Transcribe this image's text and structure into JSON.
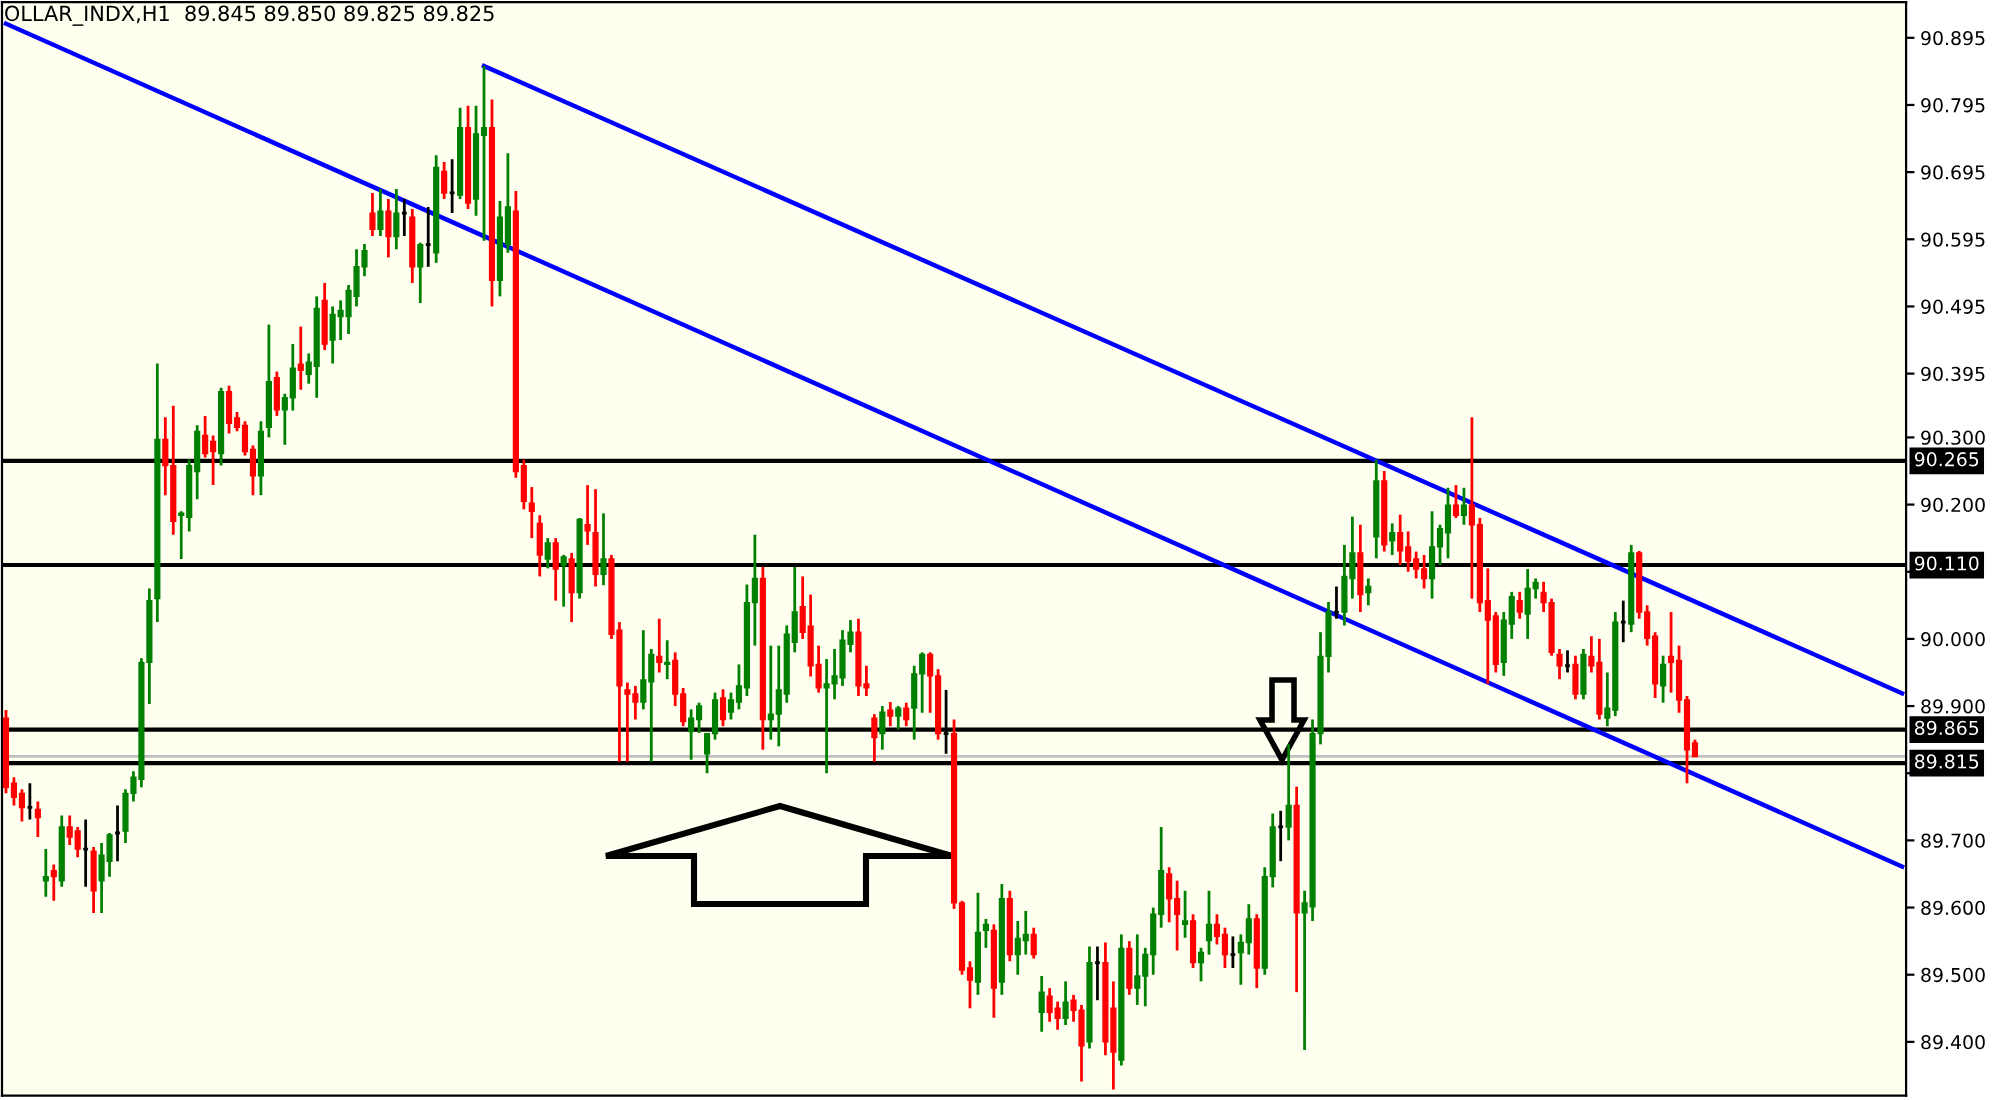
{
  "chart_data": {
    "type": "candlestick",
    "title": "OLLAR_INDX,H1  89.845 89.850 89.825 89.825",
    "categories": [
      null,
      null,
      null,
      null,
      null,
      null,
      null,
      null,
      null,
      null,
      null,
      null,
      null,
      null,
      null,
      null,
      null,
      null,
      null,
      null,
      null,
      null,
      null,
      null,
      null,
      null,
      null,
      null,
      null,
      null,
      null,
      null,
      null,
      null,
      null,
      null,
      null,
      null,
      null,
      null,
      null,
      null,
      null,
      null,
      null,
      null,
      null,
      null,
      null,
      null,
      null,
      null,
      null,
      null,
      null,
      null,
      null,
      null,
      null,
      null,
      null,
      null,
      null,
      null,
      null,
      null,
      null,
      null,
      null,
      null,
      null,
      null,
      null,
      null,
      null,
      null,
      null,
      null,
      null,
      null,
      null,
      null,
      null,
      null,
      null,
      null,
      null,
      null,
      null,
      null,
      null,
      null,
      null,
      null,
      null,
      null,
      null,
      null,
      null,
      null,
      null,
      null,
      null,
      null,
      null,
      null,
      null,
      null,
      null,
      null,
      null,
      null,
      null,
      null,
      null,
      null,
      null,
      null,
      null,
      null,
      null,
      null,
      null,
      null,
      null,
      null,
      null,
      null,
      null,
      null,
      null,
      null,
      null,
      null,
      null,
      null,
      null,
      null,
      null,
      null,
      null,
      null,
      null,
      null,
      null,
      null,
      null,
      null,
      null,
      null,
      null,
      null,
      null,
      null,
      null,
      null,
      null,
      null,
      null,
      null,
      null,
      null,
      null,
      null,
      null,
      null,
      null,
      null,
      null,
      null,
      null,
      null,
      null,
      null,
      null,
      null,
      null,
      null,
      null,
      null,
      null,
      null,
      null,
      null,
      null,
      null,
      null,
      null,
      null,
      null,
      null,
      null,
      null,
      null,
      null,
      null,
      null,
      null,
      null,
      null,
      null,
      null,
      null,
      null,
      null,
      null,
      null,
      null,
      null,
      null,
      null,
      null,
      null,
      null,
      null,
      null,
      null,
      null,
      null,
      null,
      null,
      null,
      null,
      null,
      null,
      null,
      null,
      null,
      null,
      null,
      null,
      null,
      null,
      null,
      null,
      null,
      null,
      null,
      null
    ],
    "ohlc": [
      [
        89.882,
        89.894,
        89.77,
        89.779
      ],
      [
        89.785,
        89.794,
        89.752,
        89.764
      ],
      [
        89.77,
        89.776,
        89.728,
        89.749
      ],
      [
        89.749,
        89.785,
        89.731,
        89.749
      ],
      [
        89.746,
        89.758,
        89.705,
        89.734
      ],
      [
        89.64,
        89.687,
        89.616,
        89.646
      ],
      [
        89.655,
        89.664,
        89.61,
        89.646
      ],
      [
        89.64,
        89.737,
        89.631,
        89.72
      ],
      [
        89.72,
        89.737,
        89.693,
        89.705
      ],
      [
        89.714,
        89.72,
        89.675,
        89.687
      ],
      [
        89.687,
        89.731,
        89.631,
        89.687
      ],
      [
        89.684,
        89.69,
        89.592,
        89.625
      ],
      [
        89.64,
        89.696,
        89.592,
        89.678
      ],
      [
        89.669,
        89.711,
        89.646,
        89.708
      ],
      [
        89.711,
        89.752,
        89.669,
        89.711
      ],
      [
        89.714,
        89.776,
        89.696,
        89.77
      ],
      [
        89.77,
        89.803,
        89.758,
        89.794
      ],
      [
        89.791,
        89.971,
        89.779,
        89.965
      ],
      [
        89.965,
        90.075,
        89.903,
        90.057
      ],
      [
        90.06,
        90.41,
        90.025,
        90.297
      ],
      [
        90.297,
        90.33,
        90.214,
        90.258
      ],
      [
        90.258,
        90.347,
        90.155,
        90.175
      ],
      [
        90.184,
        90.19,
        90.119,
        90.187
      ],
      [
        90.181,
        90.267,
        90.16,
        90.258
      ],
      [
        90.249,
        90.318,
        90.208,
        90.309
      ],
      [
        90.303,
        90.332,
        90.27,
        90.276
      ],
      [
        90.294,
        90.303,
        90.229,
        90.279
      ],
      [
        90.276,
        90.374,
        90.258,
        90.368
      ],
      [
        90.368,
        90.377,
        90.306,
        90.321
      ],
      [
        90.329,
        90.338,
        90.309,
        90.315
      ],
      [
        90.318,
        90.324,
        90.273,
        90.279
      ],
      [
        90.282,
        90.288,
        90.214,
        90.243
      ],
      [
        90.243,
        90.324,
        90.214,
        90.309
      ],
      [
        90.315,
        90.468,
        90.3,
        90.383
      ],
      [
        90.389,
        90.398,
        90.332,
        90.341
      ],
      [
        90.341,
        90.365,
        90.289,
        90.359
      ],
      [
        90.359,
        90.439,
        90.34,
        90.403
      ],
      [
        90.409,
        90.465,
        90.371,
        90.4
      ],
      [
        90.394,
        90.425,
        90.38,
        90.412
      ],
      [
        90.406,
        90.51,
        90.359,
        90.492
      ],
      [
        90.504,
        90.53,
        90.43,
        90.439
      ],
      [
        90.445,
        90.495,
        90.41,
        90.483
      ],
      [
        90.48,
        90.504,
        90.445,
        90.489
      ],
      [
        90.48,
        90.527,
        90.454,
        90.519
      ],
      [
        90.51,
        90.58,
        90.495,
        90.554
      ],
      [
        90.554,
        90.588,
        90.54,
        90.578
      ],
      [
        90.634,
        90.664,
        90.6,
        90.61
      ],
      [
        90.61,
        90.67,
        90.6,
        90.637
      ],
      [
        90.637,
        90.655,
        90.568,
        90.599
      ],
      [
        90.599,
        90.67,
        90.58,
        90.634
      ],
      [
        90.634,
        90.655,
        90.6,
        90.634
      ],
      [
        90.628,
        90.64,
        90.53,
        90.554
      ],
      [
        90.554,
        90.59,
        90.5,
        90.587
      ],
      [
        90.587,
        90.643,
        90.554,
        90.587
      ],
      [
        90.575,
        90.72,
        90.56,
        90.702
      ],
      [
        90.696,
        90.71,
        90.655,
        90.664
      ],
      [
        90.664,
        90.714,
        90.634,
        90.664
      ],
      [
        90.661,
        90.791,
        90.655,
        90.761
      ],
      [
        90.761,
        90.794,
        90.64,
        90.649
      ],
      [
        90.655,
        90.794,
        90.63,
        90.752
      ],
      [
        90.75,
        90.853,
        90.593,
        90.761
      ],
      [
        90.761,
        90.803,
        90.495,
        90.534
      ],
      [
        90.534,
        90.652,
        90.51,
        90.628
      ],
      [
        90.587,
        90.723,
        90.575,
        90.643
      ],
      [
        90.637,
        90.667,
        90.24,
        90.249
      ],
      [
        90.258,
        90.267,
        90.193,
        90.205
      ],
      [
        90.202,
        90.226,
        90.15,
        90.19
      ],
      [
        90.172,
        90.184,
        90.093,
        90.125
      ],
      [
        90.119,
        90.15,
        90.105,
        90.143
      ],
      [
        90.143,
        90.15,
        90.057,
        90.104
      ],
      [
        90.11,
        90.125,
        90.048,
        90.122
      ],
      [
        90.119,
        90.128,
        90.025,
        90.069
      ],
      [
        90.069,
        90.18,
        90.06,
        90.178
      ],
      [
        90.17,
        90.229,
        90.14,
        90.161
      ],
      [
        90.158,
        90.223,
        90.078,
        90.096
      ],
      [
        90.096,
        90.187,
        90.08,
        90.119
      ],
      [
        90.119,
        90.125,
        90.0,
        90.007
      ],
      [
        90.013,
        90.025,
        89.817,
        89.93
      ],
      [
        89.924,
        89.935,
        89.817,
        89.918
      ],
      [
        89.918,
        89.93,
        89.88,
        89.906
      ],
      [
        89.906,
        90.013,
        89.895,
        89.939
      ],
      [
        89.936,
        89.985,
        89.817,
        89.977
      ],
      [
        89.974,
        90.03,
        89.95,
        89.965
      ],
      [
        89.962,
        89.998,
        89.94,
        89.965
      ],
      [
        89.968,
        89.98,
        89.9,
        89.918
      ],
      [
        89.918,
        89.927,
        89.87,
        89.877
      ],
      [
        89.862,
        89.895,
        89.82,
        89.882
      ],
      [
        89.88,
        89.905,
        89.86,
        89.9
      ],
      [
        89.829,
        89.86,
        89.8,
        89.859
      ],
      [
        89.859,
        89.92,
        89.85,
        89.909
      ],
      [
        89.912,
        89.925,
        89.87,
        89.88
      ],
      [
        89.891,
        89.92,
        89.88,
        89.909
      ],
      [
        89.906,
        89.962,
        89.895,
        89.93
      ],
      [
        89.927,
        90.081,
        89.915,
        90.054
      ],
      [
        90.054,
        90.155,
        89.99,
        90.09
      ],
      [
        90.09,
        90.107,
        89.835,
        89.88
      ],
      [
        89.88,
        89.99,
        89.85,
        89.888
      ],
      [
        89.888,
        89.99,
        89.84,
        89.924
      ],
      [
        89.918,
        90.02,
        89.905,
        90.007
      ],
      [
        89.995,
        90.107,
        89.98,
        90.04
      ],
      [
        90.048,
        90.093,
        90.0,
        90.01
      ],
      [
        90.019,
        90.066,
        89.944,
        89.96
      ],
      [
        89.962,
        89.99,
        89.92,
        89.927
      ],
      [
        89.927,
        89.97,
        89.8,
        89.933
      ],
      [
        89.933,
        89.985,
        89.91,
        89.945
      ],
      [
        89.942,
        90.013,
        89.93,
        89.998
      ],
      [
        89.992,
        90.028,
        89.98,
        90.01
      ],
      [
        90.01,
        90.03,
        89.915,
        89.93
      ],
      [
        89.933,
        89.96,
        89.915,
        89.927
      ],
      [
        89.882,
        89.888,
        89.817,
        89.853
      ],
      [
        89.859,
        89.9,
        89.835,
        89.891
      ],
      [
        89.894,
        89.906,
        89.87,
        89.885
      ],
      [
        89.885,
        89.9,
        89.865,
        89.897
      ],
      [
        89.897,
        89.905,
        89.87,
        89.88
      ],
      [
        89.897,
        89.96,
        89.85,
        89.948
      ],
      [
        89.948,
        89.98,
        89.89,
        89.977
      ],
      [
        89.977,
        89.98,
        89.89,
        89.945
      ],
      [
        89.945,
        89.955,
        89.85,
        89.859
      ],
      [
        89.859,
        89.924,
        89.829,
        89.859
      ],
      [
        89.859,
        89.88,
        89.598,
        89.607
      ],
      [
        89.607,
        89.61,
        89.5,
        89.507
      ],
      [
        89.51,
        89.52,
        89.45,
        89.492
      ],
      [
        89.489,
        89.622,
        89.47,
        89.563
      ],
      [
        89.566,
        89.583,
        89.54,
        89.575
      ],
      [
        89.566,
        89.575,
        89.436,
        89.48
      ],
      [
        89.489,
        89.635,
        89.47,
        89.613
      ],
      [
        89.613,
        89.625,
        89.52,
        89.53
      ],
      [
        89.53,
        89.58,
        89.5,
        89.554
      ],
      [
        89.551,
        89.595,
        89.53,
        89.56
      ],
      [
        89.56,
        89.57,
        89.524,
        89.53
      ],
      [
        89.444,
        89.498,
        89.415,
        89.474
      ],
      [
        89.468,
        89.48,
        89.43,
        89.444
      ],
      [
        89.45,
        89.46,
        89.418,
        89.435
      ],
      [
        89.435,
        89.49,
        89.425,
        89.459
      ],
      [
        89.462,
        89.47,
        89.43,
        89.447
      ],
      [
        89.447,
        89.455,
        89.341,
        89.394
      ],
      [
        89.4,
        89.542,
        89.39,
        89.518
      ],
      [
        89.518,
        89.542,
        89.462,
        89.518
      ],
      [
        89.518,
        89.548,
        89.38,
        89.4
      ],
      [
        89.45,
        89.49,
        89.329,
        89.385
      ],
      [
        89.373,
        89.56,
        89.365,
        89.539
      ],
      [
        89.539,
        89.55,
        89.47,
        89.48
      ],
      [
        89.48,
        89.56,
        89.455,
        89.498
      ],
      [
        89.498,
        89.54,
        89.453,
        89.53
      ],
      [
        89.53,
        89.6,
        89.5,
        89.59
      ],
      [
        89.59,
        89.72,
        89.57,
        89.655
      ],
      [
        89.65,
        89.66,
        89.578,
        89.613
      ],
      [
        89.613,
        89.64,
        89.536,
        89.59
      ],
      [
        89.575,
        89.625,
        89.555,
        89.58
      ],
      [
        89.58,
        89.59,
        89.51,
        89.518
      ],
      [
        89.518,
        89.54,
        89.49,
        89.533
      ],
      [
        89.551,
        89.625,
        89.53,
        89.575
      ],
      [
        89.575,
        89.59,
        89.545,
        89.557
      ],
      [
        89.56,
        89.57,
        89.51,
        89.53
      ],
      [
        89.53,
        89.557,
        89.51,
        89.53
      ],
      [
        89.533,
        89.56,
        89.485,
        89.548
      ],
      [
        89.548,
        89.605,
        89.53,
        89.583
      ],
      [
        89.583,
        89.59,
        89.48,
        89.51
      ],
      [
        89.51,
        89.66,
        89.5,
        89.646
      ],
      [
        89.646,
        89.74,
        89.63,
        89.72
      ],
      [
        89.72,
        89.744,
        89.669,
        89.72
      ],
      [
        89.72,
        89.843,
        89.7,
        89.752
      ],
      [
        89.752,
        89.78,
        89.474,
        89.592
      ],
      [
        89.592,
        89.625,
        89.388,
        89.607
      ],
      [
        89.601,
        89.88,
        89.58,
        89.859
      ],
      [
        89.859,
        90.01,
        89.843,
        89.974
      ],
      [
        89.974,
        90.055,
        89.95,
        90.04
      ],
      [
        90.04,
        90.078,
        90.03,
        90.04
      ],
      [
        90.04,
        90.14,
        90.02,
        90.093
      ],
      [
        90.09,
        90.182,
        90.06,
        90.128
      ],
      [
        90.128,
        90.17,
        90.04,
        90.066
      ],
      [
        90.069,
        90.09,
        90.05,
        90.078
      ],
      [
        90.152,
        90.267,
        90.12,
        90.235
      ],
      [
        90.235,
        90.25,
        90.13,
        90.14
      ],
      [
        90.146,
        90.172,
        90.125,
        90.158
      ],
      [
        90.158,
        90.185,
        90.11,
        90.131
      ],
      [
        90.137,
        90.16,
        90.1,
        90.116
      ],
      [
        90.119,
        90.13,
        90.09,
        90.104
      ],
      [
        90.104,
        90.125,
        90.075,
        90.09
      ],
      [
        90.09,
        90.19,
        90.06,
        90.137
      ],
      [
        90.137,
        90.17,
        90.11,
        90.164
      ],
      [
        90.158,
        90.225,
        90.12,
        90.199
      ],
      [
        90.199,
        90.229,
        90.18,
        90.184
      ],
      [
        90.184,
        90.225,
        90.17,
        90.199
      ],
      [
        90.199,
        90.33,
        90.06,
        90.17
      ],
      [
        90.17,
        90.18,
        90.04,
        90.054
      ],
      [
        90.057,
        90.105,
        89.933,
        90.028
      ],
      [
        90.034,
        90.04,
        89.95,
        89.962
      ],
      [
        89.965,
        90.04,
        89.945,
        90.028
      ],
      [
        90.022,
        90.07,
        90.0,
        90.063
      ],
      [
        90.057,
        90.07,
        90.03,
        90.04
      ],
      [
        90.037,
        90.104,
        90.0,
        90.075
      ],
      [
        90.075,
        90.09,
        90.06,
        90.084
      ],
      [
        90.069,
        90.085,
        90.04,
        90.054
      ],
      [
        90.054,
        90.06,
        89.975,
        89.98
      ],
      [
        89.977,
        89.985,
        89.94,
        89.96
      ],
      [
        89.96,
        89.983,
        89.95,
        89.96
      ],
      [
        89.962,
        89.975,
        89.91,
        89.918
      ],
      [
        89.918,
        89.985,
        89.91,
        89.977
      ],
      [
        89.974,
        90.004,
        89.95,
        89.96
      ],
      [
        89.965,
        90.0,
        89.88,
        89.888
      ],
      [
        89.882,
        89.95,
        89.87,
        89.897
      ],
      [
        89.894,
        90.04,
        89.885,
        90.025
      ],
      [
        90.025,
        90.057,
        89.995,
        90.025
      ],
      [
        90.022,
        90.14,
        90.01,
        90.128
      ],
      [
        90.128,
        90.131,
        90.03,
        90.04
      ],
      [
        90.04,
        90.05,
        89.99,
        90.001
      ],
      [
        90.004,
        90.01,
        89.912,
        89.933
      ],
      [
        89.93,
        89.975,
        89.905,
        89.962
      ],
      [
        89.974,
        90.04,
        89.92,
        89.965
      ],
      [
        89.968,
        89.99,
        89.89,
        89.909
      ],
      [
        89.909,
        89.915,
        89.785,
        89.835
      ],
      [
        89.845,
        89.85,
        89.825,
        89.825
      ],
      null,
      null,
      null,
      null,
      null,
      null,
      null,
      null,
      null,
      null,
      null,
      null,
      null,
      null,
      null,
      null,
      null,
      null,
      null,
      null,
      null,
      null,
      null,
      null,
      null,
      null
    ],
    "colors": [
      "#ff0000",
      "#ff0000",
      "#ff0000",
      "#000000",
      "#ff0000",
      "#008000",
      "#ff0000",
      "#008000",
      "#ff0000",
      "#ff0000",
      "#000000",
      "#ff0000",
      "#008000",
      "#008000",
      "#000000",
      "#008000",
      "#008000",
      "#008000",
      "#008000",
      "#008000",
      "#ff0000",
      "#ff0000",
      "#008000",
      "#008000",
      "#008000",
      "#ff0000",
      "#ff0000",
      "#008000",
      "#ff0000",
      "#ff0000",
      "#ff0000",
      "#ff0000",
      "#008000",
      "#008000",
      "#ff0000",
      "#008000",
      "#008000",
      "#ff0000",
      "#008000",
      "#008000",
      "#ff0000",
      "#008000",
      "#008000",
      "#008000",
      "#008000",
      "#008000",
      "#ff0000",
      "#008000",
      "#ff0000",
      "#008000",
      "#000000",
      "#ff0000",
      "#008000",
      "#000000",
      "#008000",
      "#ff0000",
      "#000000",
      "#008000",
      "#ff0000",
      "#008000",
      "#008000",
      "#ff0000",
      "#008000",
      "#008000",
      "#ff0000",
      "#ff0000",
      "#ff0000",
      "#ff0000",
      "#008000",
      "#ff0000",
      "#008000",
      "#ff0000",
      "#008000",
      "#ff0000",
      "#ff0000",
      "#008000",
      "#ff0000",
      "#ff0000",
      "#ff0000",
      "#ff0000",
      "#008000",
      "#008000",
      "#ff0000",
      "#008000",
      "#ff0000",
      "#ff0000",
      "#008000",
      "#008000",
      "#008000",
      "#008000",
      "#ff0000",
      "#008000",
      "#008000",
      "#008000",
      "#008000",
      "#ff0000",
      "#008000",
      "#008000",
      "#008000",
      "#008000",
      "#ff0000",
      "#ff0000",
      "#ff0000",
      "#008000",
      "#008000",
      "#008000",
      "#008000",
      "#ff0000",
      "#ff0000",
      "#ff0000",
      "#008000",
      "#ff0000",
      "#008000",
      "#ff0000",
      "#008000",
      "#008000",
      "#ff0000",
      "#ff0000",
      "#000000",
      "#ff0000",
      "#ff0000",
      "#ff0000",
      "#008000",
      "#008000",
      "#ff0000",
      "#008000",
      "#ff0000",
      "#008000",
      "#008000",
      "#ff0000",
      "#008000",
      "#ff0000",
      "#ff0000",
      "#008000",
      "#ff0000",
      "#ff0000",
      "#008000",
      "#000000",
      "#ff0000",
      "#ff0000",
      "#008000",
      "#ff0000",
      "#008000",
      "#008000",
      "#008000",
      "#008000",
      "#ff0000",
      "#ff0000",
      "#008000",
      "#ff0000",
      "#008000",
      "#008000",
      "#ff0000",
      "#ff0000",
      "#000000",
      "#008000",
      "#008000",
      "#ff0000",
      "#008000",
      "#008000",
      "#000000",
      "#008000",
      "#ff0000",
      "#008000",
      "#008000",
      "#008000",
      "#008000",
      "#000000",
      "#008000",
      "#008000",
      "#ff0000",
      "#008000",
      "#008000",
      "#ff0000",
      "#008000",
      "#ff0000",
      "#ff0000",
      "#ff0000",
      "#ff0000",
      "#008000",
      "#008000",
      "#008000",
      "#ff0000",
      "#008000",
      "#ff0000",
      "#ff0000",
      "#ff0000",
      "#ff0000",
      "#008000",
      "#008000",
      "#ff0000",
      "#008000",
      "#008000",
      "#ff0000",
      "#ff0000",
      "#ff0000",
      "#000000",
      "#ff0000",
      "#008000",
      "#ff0000",
      "#ff0000",
      "#008000",
      "#008000",
      "#000000",
      "#008000",
      "#ff0000",
      "#ff0000",
      "#ff0000",
      "#008000",
      "#ff0000",
      "#ff0000",
      "#ff0000",
      "#ff0000",
      null,
      null,
      null,
      null,
      null,
      null,
      null,
      null,
      null,
      null,
      null,
      null,
      null,
      null,
      null,
      null,
      null,
      null,
      null,
      null,
      null,
      null,
      null,
      null,
      null,
      null
    ],
    "series": [
      {
        "type": "line",
        "color": "#0000ff",
        "values": [
          90.916,
          null,
          null,
          null,
          null,
          null,
          null,
          null,
          null,
          null,
          null,
          null,
          null,
          null,
          null,
          null,
          null,
          null,
          null,
          null,
          null,
          null,
          null,
          null,
          null,
          null,
          null,
          null,
          null,
          null,
          null,
          null,
          null,
          null,
          null,
          null,
          null,
          null,
          null,
          null,
          null,
          null,
          null,
          null,
          null,
          null,
          null,
          null,
          null,
          null,
          null,
          null,
          null,
          null,
          null,
          null,
          null,
          null,
          null,
          null,
          null,
          null,
          null,
          null,
          null,
          null,
          null,
          null,
          null,
          null,
          null,
          null,
          null,
          null,
          null,
          null,
          null,
          null,
          null,
          null,
          null,
          null,
          null,
          null,
          null,
          null,
          null,
          null,
          null,
          null,
          null,
          null,
          null,
          null,
          null,
          null,
          null,
          null,
          null,
          null,
          null,
          null,
          null,
          null,
          null,
          null,
          null,
          null,
          null,
          null,
          null,
          null,
          null,
          null,
          null,
          null,
          null,
          null,
          null,
          null,
          null,
          null,
          null,
          null,
          null,
          null,
          null,
          null,
          null,
          null,
          null,
          null,
          null,
          null,
          null,
          null,
          null,
          null,
          null,
          null,
          null,
          null,
          null,
          null,
          null,
          null,
          null,
          null,
          null,
          null,
          null,
          null,
          null,
          null,
          null,
          null,
          null,
          null,
          null,
          null,
          null,
          null,
          null,
          null,
          null,
          null,
          null,
          null,
          null,
          null,
          null,
          null,
          null,
          null,
          null,
          null,
          null,
          null,
          null,
          null,
          null,
          null,
          null,
          null,
          null,
          null,
          null,
          null,
          null,
          null,
          null,
          null,
          null,
          null,
          null,
          null,
          null,
          null,
          null,
          null,
          null,
          null,
          null,
          null,
          null,
          null,
          null,
          null,
          null,
          null,
          null,
          null,
          null,
          null,
          null,
          null,
          null,
          null,
          null,
          null,
          null,
          null,
          null,
          null,
          null,
          null,
          null,
          null,
          null,
          null,
          null,
          null,
          null,
          null,
          null,
          null,
          null,
          null,
          89.661
        ]
      },
      {
        "type": "line",
        "color": "#0000ff",
        "values": [
          null,
          null,
          null,
          null,
          null,
          null,
          null,
          null,
          null,
          null,
          null,
          null,
          null,
          null,
          null,
          null,
          null,
          null,
          null,
          null,
          null,
          null,
          null,
          null,
          null,
          null,
          null,
          null,
          null,
          null,
          null,
          null,
          null,
          null,
          null,
          null,
          null,
          null,
          null,
          null,
          null,
          null,
          null,
          null,
          null,
          null,
          null,
          null,
          null,
          null,
          null,
          null,
          null,
          null,
          null,
          null,
          null,
          null,
          null,
          null,
          90.853,
          null,
          null,
          null,
          null,
          null,
          null,
          null,
          null,
          null,
          null,
          null,
          null,
          null,
          null,
          null,
          null,
          null,
          null,
          null,
          null,
          null,
          null,
          null,
          null,
          null,
          null,
          null,
          null,
          null,
          null,
          null,
          null,
          null,
          null,
          null,
          null,
          null,
          null,
          null,
          null,
          null,
          null,
          null,
          null,
          null,
          null,
          null,
          null,
          null,
          null,
          null,
          null,
          null,
          null,
          null,
          null,
          null,
          null,
          null,
          null,
          null,
          null,
          null,
          null,
          null,
          null,
          null,
          null,
          null,
          null,
          null,
          null,
          null,
          null,
          null,
          null,
          null,
          null,
          null,
          null,
          null,
          null,
          null,
          null,
          null,
          null,
          null,
          null,
          null,
          null,
          null,
          null,
          null,
          null,
          null,
          null,
          null,
          null,
          null,
          null,
          null,
          null,
          null,
          null,
          null,
          null,
          null,
          null,
          null,
          null,
          null,
          null,
          null,
          null,
          null,
          null,
          null,
          null,
          null,
          null,
          null,
          null,
          null,
          null,
          null,
          null,
          null,
          null,
          null,
          null,
          null,
          null,
          null,
          null,
          null,
          null,
          null,
          null,
          null,
          null,
          null,
          null,
          null,
          null,
          null,
          null,
          null,
          null,
          null,
          null,
          null,
          null,
          null,
          null,
          null,
          null,
          null,
          null,
          null,
          null,
          null,
          null,
          null,
          null,
          null,
          null,
          null,
          null,
          null,
          null,
          null,
          null,
          null,
          null,
          null,
          null,
          null,
          89.919
        ]
      }
    ],
    "ref_lines": [
      {
        "axis": "y",
        "value": 90.265,
        "label": "90.265",
        "color": "#000000"
      },
      {
        "axis": "y",
        "value": 90.11,
        "label": "90.110",
        "color": "#000000"
      },
      {
        "axis": "y",
        "value": 89.865,
        "label": "89.865",
        "color": "#000000"
      },
      {
        "axis": "y",
        "value": 89.825,
        "label": null,
        "color": "#c0c0c0"
      },
      {
        "axis": "y",
        "value": 89.815,
        "label": "89.815",
        "color": "#000000"
      }
    ],
    "ylim": [
      89.32,
      90.948
    ],
    "yticks": [
      {
        "value": 90.895,
        "label": "90.895"
      },
      {
        "value": 90.795,
        "label": "90.795"
      },
      {
        "value": 90.695,
        "label": "90.695"
      },
      {
        "value": 90.595,
        "label": "90.595"
      },
      {
        "value": 90.495,
        "label": "90.495"
      },
      {
        "value": 90.395,
        "label": "90.395"
      },
      {
        "value": 90.3,
        "label": "90.300"
      },
      {
        "value": 90.2,
        "label": "90.200"
      },
      {
        "value": 90.1,
        "label": null
      },
      {
        "value": 90.0,
        "label": "90.000"
      },
      {
        "value": 89.9,
        "label": "89.900"
      },
      {
        "value": 89.8,
        "label": null
      },
      {
        "value": 89.7,
        "label": "89.700"
      },
      {
        "value": 89.6,
        "label": "89.600"
      },
      {
        "value": 89.5,
        "label": "89.500"
      },
      {
        "value": 89.4,
        "label": "89.400"
      }
    ],
    "tick_labels": "y",
    "grid": false,
    "legend": false
  }
}
